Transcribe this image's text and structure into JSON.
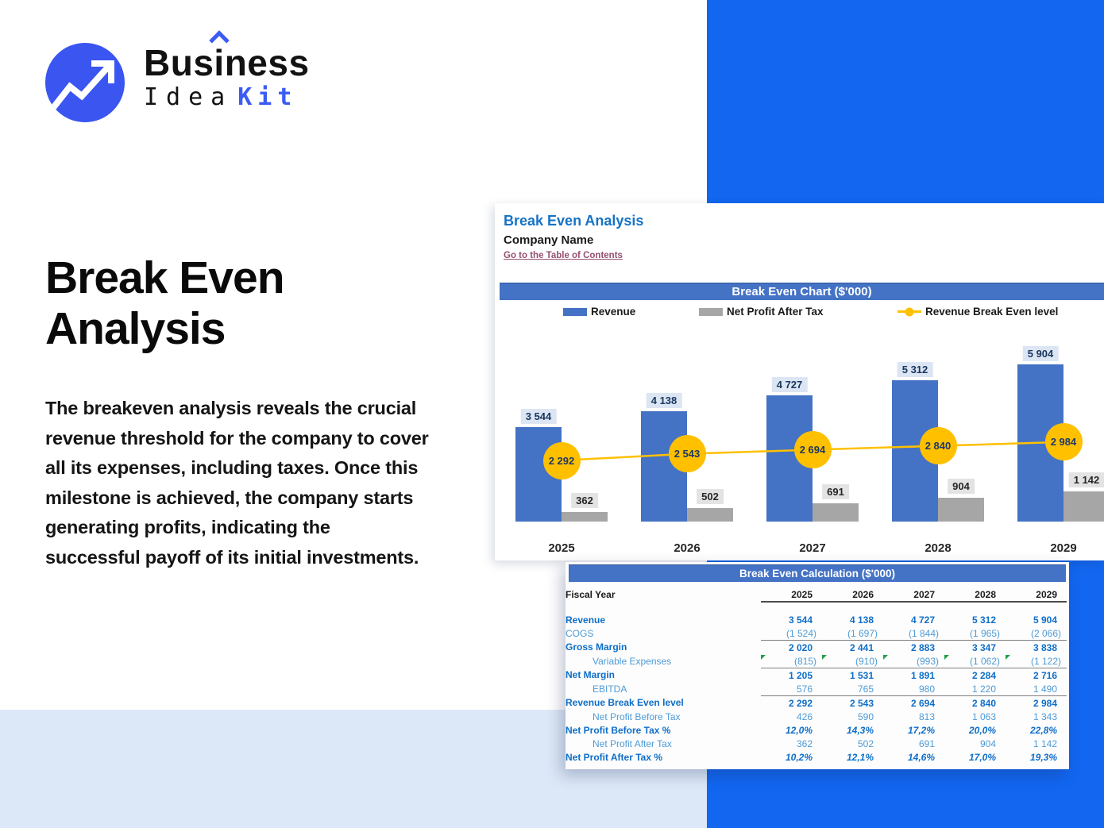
{
  "brand": {
    "name_part1": "Bus",
    "name_part2": "i",
    "name_part3": "ness",
    "line2_left": "Idea",
    "line2_right": "Kit"
  },
  "hero": {
    "title_line1": "Break Even",
    "title_line2": "Analysis",
    "description": "The breakeven analysis reveals the crucial revenue threshold for the company to cover all its expenses, including taxes. Once this milestone is achieved, the company starts generating profits, indicating the successful payoff of its initial investments."
  },
  "sheet": {
    "title": "Break Even Analysis",
    "company": "Company Name",
    "link": "Go to the Table of Contents",
    "chart": {
      "banner": "Break Even Chart ($'000)",
      "legend": [
        {
          "label": "Revenue",
          "color": "#4472C4",
          "type": "bar"
        },
        {
          "label": "Net Profit After Tax",
          "color": "#A6A6A6",
          "type": "bar"
        },
        {
          "label": "Revenue Break Even level",
          "color": "#FFC000",
          "type": "line"
        }
      ],
      "chart_data": {
        "type": "bar",
        "title": "Break Even Chart ($'000)",
        "categories": [
          "2025",
          "2026",
          "2027",
          "2028",
          "2029"
        ],
        "series": [
          {
            "name": "Revenue",
            "type": "bar",
            "color": "#4472C4",
            "values": [
              3544,
              4138,
              4727,
              5312,
              5904
            ],
            "labels": [
              "3 544",
              "4 138",
              "4 727",
              "5 312",
              "5 904"
            ]
          },
          {
            "name": "Net Profit After Tax",
            "type": "bar",
            "color": "#A6A6A6",
            "values": [
              362,
              502,
              691,
              904,
              1142
            ],
            "labels": [
              "362",
              "502",
              "691",
              "904",
              "1 142"
            ]
          },
          {
            "name": "Revenue Break Even level",
            "type": "line",
            "color": "#FFC000",
            "values": [
              2292,
              2543,
              2694,
              2840,
              2984
            ],
            "labels": [
              "2 292",
              "2 543",
              "2 694",
              "2 840",
              "2 984"
            ]
          }
        ],
        "xlabel": "",
        "ylabel": "",
        "ylim": [
          0,
          6500
        ],
        "grid": false,
        "legend_position": "top"
      }
    },
    "table": {
      "banner": "Break Even Calculation ($'000)",
      "fiscal_year_label": "Fiscal Year",
      "years": [
        "2025",
        "2026",
        "2027",
        "2028",
        "2029"
      ],
      "rows": [
        {
          "label": "Revenue",
          "style": "bold",
          "values": [
            "3 544",
            "4 138",
            "4 727",
            "5 312",
            "5 904"
          ]
        },
        {
          "label": "COGS",
          "style": "light",
          "rule_below": true,
          "values": [
            "(1 524)",
            "(1 697)",
            "(1 844)",
            "(1 965)",
            "(2 066)"
          ]
        },
        {
          "label": "Gross Margin",
          "style": "bold",
          "values": [
            "2 020",
            "2 441",
            "2 883",
            "3 347",
            "3 838"
          ]
        },
        {
          "label": "Variable Expenses",
          "style": "light",
          "indent": true,
          "flags": true,
          "rule_below": true,
          "values": [
            "(815)",
            "(910)",
            "(993)",
            "(1 062)",
            "(1 122)"
          ]
        },
        {
          "label": "Net Margin",
          "style": "bold",
          "values": [
            "1 205",
            "1 531",
            "1 891",
            "2 284",
            "2 716"
          ]
        },
        {
          "label": "EBITDA",
          "style": "light",
          "indent": true,
          "rule_below": true,
          "values": [
            "576",
            "765",
            "980",
            "1 220",
            "1 490"
          ]
        },
        {
          "label": "Revenue Break Even level",
          "style": "bold",
          "values": [
            "2 292",
            "2 543",
            "2 694",
            "2 840",
            "2 984"
          ]
        },
        {
          "label": "Net Profit Before Tax",
          "style": "light",
          "indent": true,
          "values": [
            "426",
            "590",
            "813",
            "1 063",
            "1 343"
          ]
        },
        {
          "label": "Net Profit Before Tax %",
          "style": "bold",
          "percent": true,
          "values": [
            "12,0%",
            "14,3%",
            "17,2%",
            "20,0%",
            "22,8%"
          ]
        },
        {
          "label": "Net Profit After Tax",
          "style": "light",
          "indent": true,
          "values": [
            "362",
            "502",
            "691",
            "904",
            "1 142"
          ]
        },
        {
          "label": "Net Profit After Tax %",
          "style": "bold",
          "percent": true,
          "values": [
            "10,2%",
            "12,1%",
            "14,6%",
            "17,0%",
            "19,3%"
          ]
        }
      ]
    }
  },
  "colors": {
    "accent_blue": "#1266F0",
    "logo_blue": "#3A55F0",
    "banner_blue": "#4472C4",
    "bar_blue": "#4472C4",
    "bar_gray": "#A6A6A6",
    "breakeven_yellow": "#FFC000",
    "light_band": "#DCE8F8",
    "link_maroon": "#954F72",
    "table_bold_blue": "#0E6EC8",
    "table_light_blue": "#4E9BD6"
  }
}
